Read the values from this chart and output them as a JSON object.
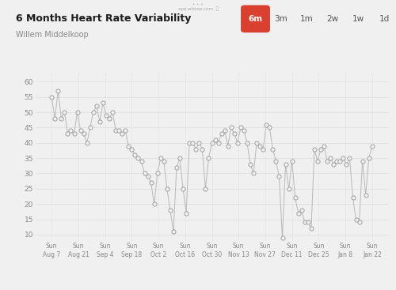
{
  "title": "6 Months Heart Rate Variability",
  "subtitle": "Willem Middelkoop",
  "background_color": "#f0f0f0",
  "plot_bg_color": "#f0f0f0",
  "line_color": "#b8b8b8",
  "marker_facecolor": "#f0f0f0",
  "marker_edgecolor": "#a0a0a0",
  "grid_color": "#e0e0e0",
  "ylim": [
    8,
    63
  ],
  "yticks": [
    10,
    15,
    20,
    25,
    30,
    35,
    40,
    45,
    50,
    55,
    60
  ],
  "x_labels": [
    "Sun\nAug 7",
    "Sun\nAug 21",
    "Sun\nSep 4",
    "Sun\nSep 18",
    "Sun\nOct 2",
    "Sun\nOct 16",
    "Sun\nOct 30",
    "Sun\nNov 13",
    "Sun\nNov 27",
    "Sun\nDec 11",
    "Sun\nDec 25",
    "Sun\nJan 8",
    "Sun\nJan 22"
  ],
  "button_color": "#d94030",
  "button_text_color": "#ffffff",
  "buttons": [
    "6m",
    "3m",
    "1m",
    "2w",
    "1w",
    "1d"
  ],
  "active_button": "6m",
  "hrv_values": [
    55,
    48,
    57,
    48,
    50,
    43,
    44,
    43,
    50,
    44,
    43,
    40,
    45,
    50,
    52,
    47,
    53,
    49,
    48,
    50,
    44,
    44,
    43,
    44,
    39,
    38,
    36,
    35,
    34,
    30,
    29,
    27,
    20,
    30,
    35,
    34,
    25,
    18,
    11,
    32,
    35,
    25,
    17,
    40,
    40,
    38,
    40,
    38,
    25,
    35,
    40,
    41,
    40,
    43,
    44,
    39,
    45,
    43,
    40,
    45,
    44,
    40,
    33,
    30,
    40,
    39,
    38,
    46,
    45,
    38,
    34,
    29,
    9,
    33,
    25,
    34,
    22,
    17,
    18,
    14,
    14,
    12,
    38,
    34,
    38,
    39,
    34,
    35,
    33,
    34,
    34,
    35,
    33,
    35,
    22,
    15,
    14,
    34,
    23,
    35,
    39
  ]
}
